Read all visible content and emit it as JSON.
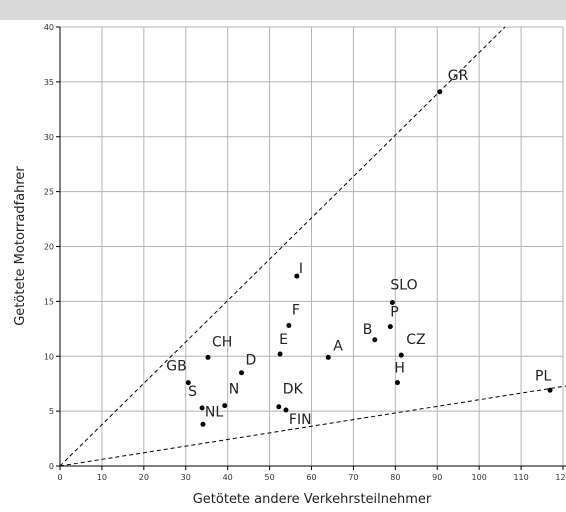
{
  "chart_data": {
    "type": "scatter",
    "x_label": "Getötete andere Verkehrsteilnehmer",
    "y_label": "Getötete Motorradfahrer",
    "labels": [
      "GR",
      "I",
      "SLO",
      "P",
      "B",
      "CZ",
      "H",
      "A",
      "F",
      "E",
      "D",
      "CH",
      "GB",
      "S",
      "N",
      "NL",
      "DK",
      "FIN",
      "PL"
    ],
    "x": [
      90.6,
      56.5,
      79.3,
      78.8,
      75.1,
      81.4,
      80.5,
      64.0,
      54.6,
      52.5,
      43.3,
      35.3,
      30.6,
      33.9,
      39.3,
      34.1,
      52.2,
      53.9,
      116.9
    ],
    "values": [
      34.1,
      17.3,
      14.9,
      12.7,
      11.5,
      10.1,
      7.6,
      9.9,
      12.8,
      10.2,
      8.5,
      9.9,
      7.6,
      5.3,
      5.5,
      3.8,
      5.4,
      5.1,
      6.9
    ],
    "color": "#000000",
    "xlim": [
      0,
      120
    ],
    "xticks": [
      0,
      10,
      20,
      30,
      40,
      50,
      60,
      70,
      80,
      90,
      100,
      110,
      120
    ],
    "ylim": [
      0,
      40
    ],
    "yticks": [
      0,
      5,
      10,
      15,
      20,
      25,
      30,
      35,
      40
    ],
    "grid": true
  }
}
